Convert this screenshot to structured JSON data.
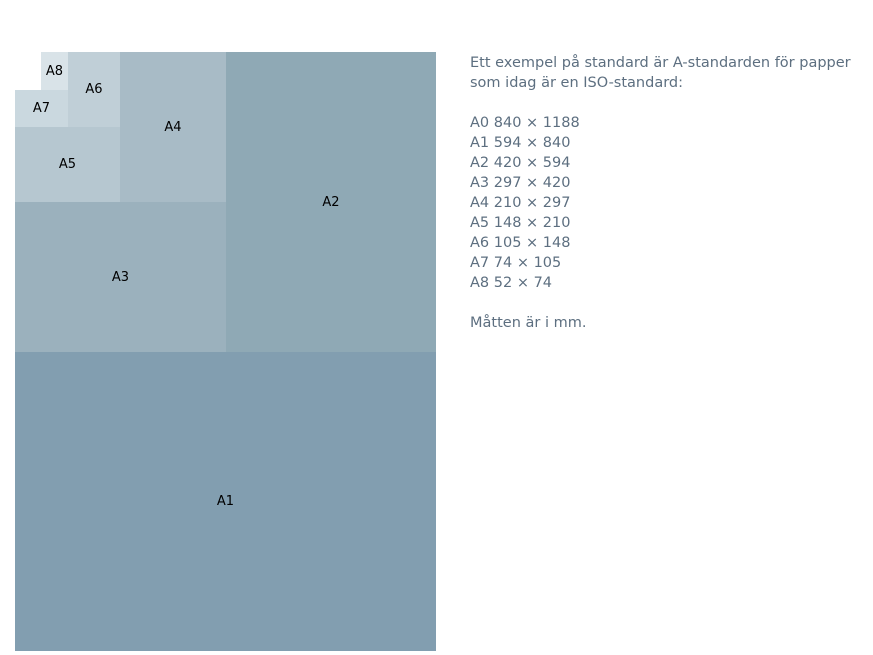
{
  "sheets": [
    {
      "id": "a1",
      "label": "A1",
      "color": "#829eb0"
    },
    {
      "id": "a2",
      "label": "A2",
      "color": "#8fa9b5"
    },
    {
      "id": "a3",
      "label": "A3",
      "color": "#9bb1bd"
    },
    {
      "id": "a4",
      "label": "A4",
      "color": "#a8bbc6"
    },
    {
      "id": "a5",
      "label": "A5",
      "color": "#b6c7d0"
    },
    {
      "id": "a6",
      "label": "A6",
      "color": "#c0cfd7"
    },
    {
      "id": "a7",
      "label": "A7",
      "color": "#cad8df"
    },
    {
      "id": "a8",
      "label": "A8",
      "color": "#d9e3e8"
    }
  ],
  "info": {
    "intro": "Ett exempel på standard är A-standarden för papper som idag är en ISO-standard:",
    "sizes": [
      "A0 840 × 1188",
      "A1 594 × 840",
      "A2 420 × 594",
      "A3 297 × 420",
      "A4 210 × 297",
      "A5 148 × 210",
      "A6 105 × 148",
      "A7 74 × 105",
      "A8 52 × 74"
    ],
    "note": "Måtten är i mm."
  },
  "colors": {
    "text": "#5d6f80",
    "label": "#000000",
    "background": "#ffffff"
  }
}
